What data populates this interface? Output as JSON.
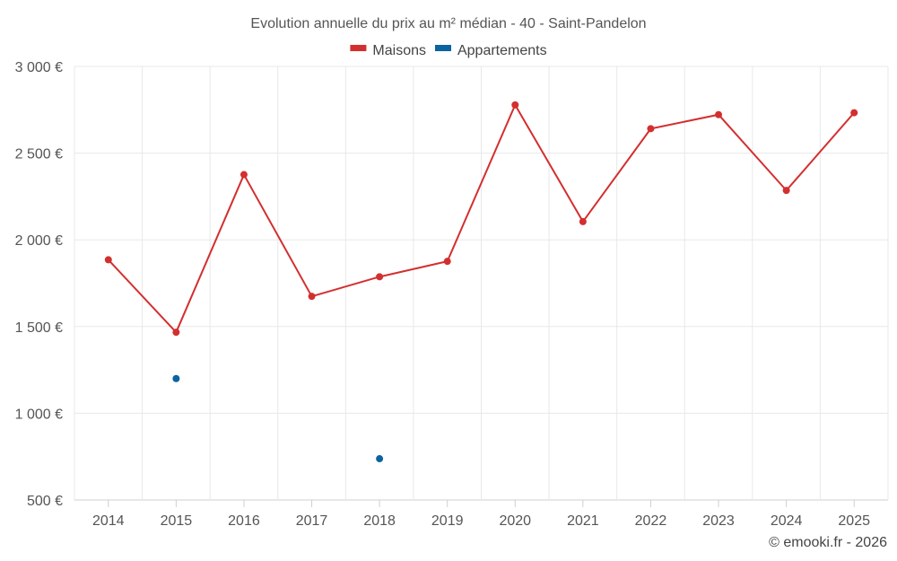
{
  "chart_data": {
    "type": "line",
    "title": "Evolution annuelle du prix au m² médian - 40 - Saint-Pandelon",
    "categories": [
      "2014",
      "2015",
      "2016",
      "2017",
      "2018",
      "2019",
      "2020",
      "2021",
      "2022",
      "2023",
      "2024",
      "2025"
    ],
    "ylim": [
      500,
      3000
    ],
    "yticks": [
      500,
      1000,
      1500,
      2000,
      2500,
      3000
    ],
    "ytick_labels": [
      "500 €",
      "1 000 €",
      "1 500 €",
      "2 000 €",
      "2 500 €",
      "3 000 €"
    ],
    "xlabel": "",
    "ylabel": "",
    "grid": true,
    "legend_position": "top-center",
    "series": [
      {
        "name": "Maisons",
        "color": "#d32f2f",
        "values": [
          1885,
          1467,
          2376,
          1674,
          1787,
          1876,
          2778,
          2105,
          2641,
          2722,
          2285,
          2733
        ]
      },
      {
        "name": "Appartements",
        "color": "#0b63a0",
        "values": [
          null,
          1200,
          null,
          null,
          738,
          null,
          null,
          null,
          null,
          null,
          null,
          null
        ]
      }
    ]
  },
  "credit": "© emooki.fr - 2026"
}
